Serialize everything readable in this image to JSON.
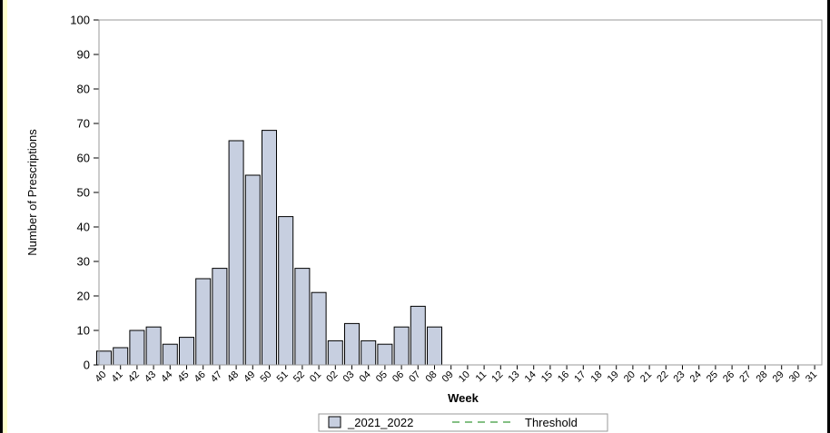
{
  "chart_data": {
    "type": "bar",
    "xlabel": "Week",
    "ylabel": "Number of Prescriptions",
    "ylim": [
      0,
      100
    ],
    "yticks": [
      0,
      10,
      20,
      30,
      40,
      50,
      60,
      70,
      80,
      90,
      100
    ],
    "categories": [
      "40",
      "41",
      "42",
      "43",
      "44",
      "45",
      "46",
      "47",
      "48",
      "49",
      "50",
      "51",
      "52",
      "01",
      "02",
      "03",
      "04",
      "05",
      "06",
      "07",
      "08",
      "09",
      "10",
      "11",
      "12",
      "13",
      "14",
      "15",
      "16",
      "17",
      "18",
      "19",
      "20",
      "21",
      "22",
      "23",
      "24",
      "25",
      "26",
      "27",
      "28",
      "29",
      "30",
      "31"
    ],
    "series": [
      {
        "name": "_2021_2022",
        "values": [
          4,
          5,
          10,
          11,
          6,
          8,
          25,
          28,
          65,
          55,
          68,
          43,
          28,
          21,
          7,
          12,
          7,
          6,
          11,
          17,
          11,
          null,
          null,
          null,
          null,
          null,
          null,
          null,
          null,
          null,
          null,
          null,
          null,
          null,
          null,
          null,
          null,
          null,
          null,
          null,
          null,
          null,
          null,
          null
        ]
      }
    ],
    "legend": {
      "position": "bottom",
      "entries": [
        "_2021_2022",
        "Threshold"
      ]
    },
    "colors": {
      "bar_fill": "#c7cfe0",
      "bar_stroke": "#000000",
      "threshold": "#3a9a3a"
    },
    "grid": false
  }
}
